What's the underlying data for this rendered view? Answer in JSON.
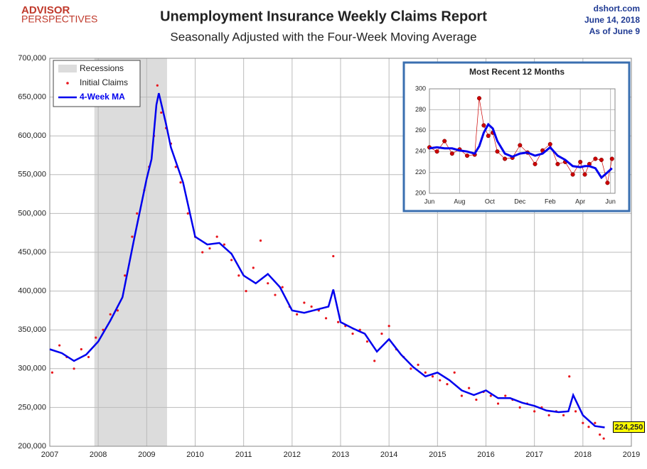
{
  "logo": [
    "ADVISOR",
    "PERSPECTIVES"
  ],
  "source": [
    "dshort.com",
    "June 14, 2018",
    "As of June 9"
  ],
  "chart_data": [
    {
      "type": "line",
      "title": "Unemployment Insurance Weekly Claims Report",
      "subtitle": "Seasonally Adjusted with the Four-Week Moving Average",
      "xlim": [
        2007,
        2019
      ],
      "xticks": [
        2007,
        2008,
        2009,
        2010,
        2011,
        2012,
        2013,
        2014,
        2015,
        2016,
        2017,
        2018,
        2019
      ],
      "ylim": [
        200000,
        700000
      ],
      "yticks": [
        {
          "value": 200000,
          "label": "200,000"
        },
        {
          "value": 250000,
          "label": "250,000"
        },
        {
          "value": 300000,
          "label": "300,000"
        },
        {
          "value": 350000,
          "label": "350,000"
        },
        {
          "value": 400000,
          "label": "400,000"
        },
        {
          "value": 450000,
          "label": "450,000"
        },
        {
          "value": 500000,
          "label": "500,000"
        },
        {
          "value": 550000,
          "label": "550,000"
        },
        {
          "value": 600000,
          "label": "600,000"
        },
        {
          "value": 650000,
          "label": "650,000"
        },
        {
          "value": 700000,
          "label": "700,000"
        }
      ],
      "grid": true,
      "legend": "upper left",
      "recession": {
        "name": "Recessions",
        "color": "#dcdcdc",
        "xrange": [
          2007.92,
          2009.42
        ]
      },
      "series": [
        {
          "name": "Initial Claims",
          "kind": "scatter",
          "color": "#e8141b",
          "x": [
            2007.05,
            2007.2,
            2007.35,
            2007.5,
            2007.65,
            2007.8,
            2007.95,
            2008.1,
            2008.25,
            2008.4,
            2008.55,
            2008.7,
            2008.8,
            2008.95,
            2009.05,
            2009.15,
            2009.22,
            2009.3,
            2009.4,
            2009.5,
            2009.6,
            2009.7,
            2009.85,
            2010.0,
            2010.15,
            2010.3,
            2010.45,
            2010.6,
            2010.75,
            2010.9,
            2011.05,
            2011.2,
            2011.35,
            2011.5,
            2011.65,
            2011.8,
            2011.95,
            2012.1,
            2012.25,
            2012.4,
            2012.55,
            2012.7,
            2012.85,
            2012.95,
            2013.1,
            2013.25,
            2013.4,
            2013.55,
            2013.7,
            2013.85,
            2014.0,
            2014.15,
            2014.3,
            2014.45,
            2014.6,
            2014.75,
            2014.9,
            2015.05,
            2015.2,
            2015.35,
            2015.5,
            2015.65,
            2015.8,
            2015.95,
            2016.1,
            2016.25,
            2016.4,
            2016.55,
            2016.7,
            2016.85,
            2017.0,
            2017.15,
            2017.3,
            2017.45,
            2017.6,
            2017.72,
            2017.85,
            2018.0,
            2018.12,
            2018.25,
            2018.35,
            2018.43
          ],
          "values": [
            295000,
            330000,
            315000,
            300000,
            325000,
            315000,
            340000,
            350000,
            370000,
            375000,
            420000,
            470000,
            500000,
            530000,
            560000,
            600000,
            665000,
            630000,
            610000,
            590000,
            560000,
            540000,
            500000,
            470000,
            450000,
            455000,
            470000,
            460000,
            440000,
            420000,
            400000,
            430000,
            465000,
            410000,
            395000,
            405000,
            380000,
            370000,
            385000,
            380000,
            375000,
            365000,
            445000,
            360000,
            355000,
            345000,
            350000,
            335000,
            310000,
            345000,
            355000,
            325000,
            315000,
            300000,
            305000,
            295000,
            290000,
            285000,
            280000,
            295000,
            265000,
            275000,
            260000,
            270000,
            265000,
            255000,
            265000,
            260000,
            250000,
            255000,
            245000,
            250000,
            240000,
            245000,
            240000,
            290000,
            245000,
            230000,
            225000,
            230000,
            215000,
            210000
          ]
        },
        {
          "name": "4-Week MA",
          "kind": "line",
          "color": "#0000ee",
          "x": [
            2007.0,
            2007.25,
            2007.5,
            2007.75,
            2008.0,
            2008.25,
            2008.5,
            2008.75,
            2009.0,
            2009.1,
            2009.2,
            2009.25,
            2009.4,
            2009.5,
            2009.75,
            2010.0,
            2010.25,
            2010.5,
            2010.75,
            2011.0,
            2011.25,
            2011.5,
            2011.75,
            2012.0,
            2012.25,
            2012.5,
            2012.75,
            2012.85,
            2013.0,
            2013.25,
            2013.5,
            2013.75,
            2014.0,
            2014.25,
            2014.5,
            2014.75,
            2015.0,
            2015.25,
            2015.5,
            2015.75,
            2016.0,
            2016.25,
            2016.5,
            2016.75,
            2017.0,
            2017.25,
            2017.5,
            2017.7,
            2017.8,
            2018.0,
            2018.25,
            2018.45
          ],
          "values": [
            325000,
            320000,
            310000,
            318000,
            335000,
            362000,
            392000,
            470000,
            545000,
            570000,
            640000,
            655000,
            615000,
            585000,
            540000,
            470000,
            460000,
            462000,
            448000,
            420000,
            410000,
            422000,
            405000,
            375000,
            372000,
            376000,
            380000,
            402000,
            360000,
            352000,
            345000,
            322000,
            338000,
            318000,
            302000,
            290000,
            295000,
            285000,
            272000,
            266000,
            272000,
            262000,
            262000,
            256000,
            252000,
            246000,
            244000,
            245000,
            266000,
            240000,
            226000,
            224250
          ],
          "value_labels": [
            null,
            null,
            null,
            null,
            null,
            null,
            null,
            null,
            null,
            null,
            null,
            null,
            null,
            null,
            null,
            null,
            null,
            null,
            null,
            null,
            null,
            null,
            null,
            null,
            null,
            null,
            null,
            null,
            null,
            null,
            null,
            null,
            null,
            null,
            null,
            null,
            null,
            null,
            null,
            null,
            null,
            null,
            null,
            null,
            null,
            null,
            null,
            null,
            null,
            null,
            null,
            "224,250"
          ]
        }
      ]
    },
    {
      "type": "line",
      "title": "Most Recent 12 Months",
      "xlim": [
        0,
        12.3
      ],
      "xticks": [
        {
          "value": 0,
          "label": "Jun"
        },
        {
          "value": 2,
          "label": "Aug"
        },
        {
          "value": 4,
          "label": "Oct"
        },
        {
          "value": 6,
          "label": "Dec"
        },
        {
          "value": 8,
          "label": "Feb"
        },
        {
          "value": 10,
          "label": "Apr"
        },
        {
          "value": 12,
          "label": "Jun"
        }
      ],
      "ylim": [
        200,
        300
      ],
      "yticks": [
        200,
        220,
        240,
        260,
        280,
        300
      ],
      "grid": true,
      "series": [
        {
          "name": "Initial Claims",
          "kind": "dots",
          "color": "#cc0000",
          "x": [
            0,
            0.5,
            1,
            1.5,
            2,
            2.5,
            3,
            3.3,
            3.6,
            3.9,
            4.2,
            4.5,
            5,
            5.5,
            6,
            6.5,
            7,
            7.5,
            8,
            8.5,
            9,
            9.5,
            10,
            10.3,
            10.6,
            11,
            11.4,
            11.8,
            12.1
          ],
          "values": [
            244,
            240,
            250,
            238,
            242,
            236,
            237,
            291,
            265,
            255,
            258,
            240,
            233,
            234,
            246,
            239,
            228,
            241,
            247,
            228,
            230,
            218,
            230,
            218,
            228,
            233,
            232,
            210,
            233
          ]
        },
        {
          "name": "4-Week MA",
          "kind": "line",
          "color": "#0000ee",
          "x": [
            0,
            0.5,
            1,
            1.5,
            2,
            2.5,
            3,
            3.3,
            3.6,
            3.9,
            4.2,
            4.5,
            5,
            5.5,
            6,
            6.5,
            7,
            7.5,
            8,
            8.5,
            9,
            9.5,
            10,
            10.3,
            10.6,
            11,
            11.4,
            11.8,
            12.1
          ],
          "values": [
            243,
            244,
            243,
            243,
            241,
            240,
            238,
            245,
            258,
            266,
            262,
            250,
            238,
            235,
            238,
            239,
            236,
            238,
            244,
            236,
            232,
            226,
            225,
            226,
            226,
            224,
            215,
            220,
            224
          ]
        }
      ]
    }
  ]
}
